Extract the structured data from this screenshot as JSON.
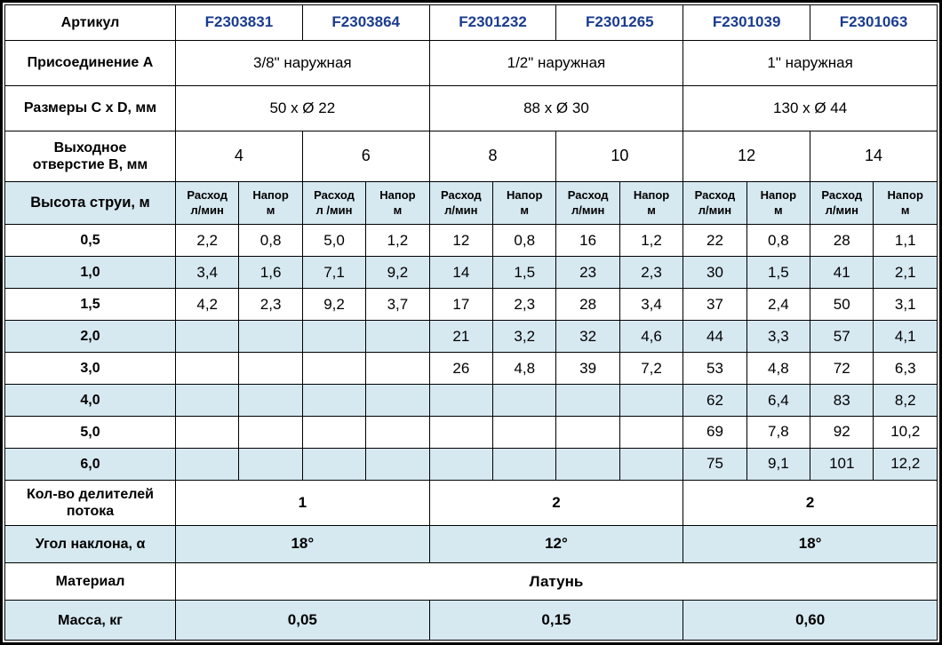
{
  "colors": {
    "alt_row_bg": "#d6e8f0",
    "article_text": "#1b3c8f",
    "border": "#000000",
    "background": "#ffffff",
    "text": "#000000"
  },
  "table": {
    "rows": [
      {
        "type": "article",
        "alt": false,
        "label": "Артикул",
        "cells": [
          {
            "t": "F2303831",
            "span": 2,
            "s": "article"
          },
          {
            "t": "F2303864",
            "span": 2,
            "s": "article"
          },
          {
            "t": "F2301232",
            "span": 2,
            "s": "article"
          },
          {
            "t": "F2301265",
            "span": 2,
            "s": "article"
          },
          {
            "t": "F2301039",
            "span": 2,
            "s": "article"
          },
          {
            "t": "F2301063",
            "span": 2,
            "s": "article"
          }
        ]
      },
      {
        "type": "connection",
        "alt": false,
        "label": "Присоединение A",
        "cells": [
          {
            "t": "3/8\" наружная",
            "span": 4
          },
          {
            "t": "1/2\" наружная",
            "span": 4
          },
          {
            "t": "1\" наружная",
            "span": 4
          }
        ]
      },
      {
        "type": "dimensions",
        "alt": false,
        "label": "Размеры C x D, мм",
        "cells": [
          {
            "t": "50 x Ø 22",
            "span": 4
          },
          {
            "t": "88 x Ø 30",
            "span": 4
          },
          {
            "t": "130 x Ø 44",
            "span": 4
          }
        ]
      },
      {
        "type": "outlet",
        "alt": false,
        "label": "Выходное\nотверстие B, мм",
        "cells": [
          {
            "t": "4",
            "span": 2
          },
          {
            "t": "6",
            "span": 2
          },
          {
            "t": "8",
            "span": 2
          },
          {
            "t": "10",
            "span": 2
          },
          {
            "t": "12",
            "span": 2
          },
          {
            "t": "14",
            "span": 2
          }
        ]
      },
      {
        "type": "subheader",
        "alt": true,
        "label": "Высота струи, м",
        "cells": [
          {
            "t": "Расход\nл/мин",
            "s": "subhead"
          },
          {
            "t": "Напор\nм",
            "s": "subhead"
          },
          {
            "t": "Расход\nл /мин",
            "s": "subhead"
          },
          {
            "t": "Напор\nм",
            "s": "subhead"
          },
          {
            "t": "Расход\nл/мин",
            "s": "subhead"
          },
          {
            "t": "Напор\nм",
            "s": "subhead"
          },
          {
            "t": "Расход\nл/мин",
            "s": "subhead"
          },
          {
            "t": "Напор\nм",
            "s": "subhead"
          },
          {
            "t": "Расход\nл/мин",
            "s": "subhead"
          },
          {
            "t": "Напор\nм",
            "s": "subhead"
          },
          {
            "t": "Расход\nл/мин",
            "s": "subhead"
          },
          {
            "t": "Напор\nм",
            "s": "subhead"
          }
        ]
      },
      {
        "type": "data",
        "alt": false,
        "label": "0,5",
        "cells": [
          "2,2",
          "0,8",
          "5,0",
          "1,2",
          "12",
          "0,8",
          "16",
          "1,2",
          "22",
          "0,8",
          "28",
          "1,1"
        ]
      },
      {
        "type": "data",
        "alt": true,
        "label": "1,0",
        "cells": [
          "3,4",
          "1,6",
          "7,1",
          "9,2",
          "14",
          "1,5",
          "23",
          "2,3",
          "30",
          "1,5",
          "41",
          "2,1"
        ]
      },
      {
        "type": "data",
        "alt": false,
        "label": "1,5",
        "cells": [
          "4,2",
          "2,3",
          "9,2",
          "3,7",
          "17",
          "2,3",
          "28",
          "3,4",
          "37",
          "2,4",
          "50",
          "3,1"
        ]
      },
      {
        "type": "data",
        "alt": true,
        "label": "2,0",
        "cells": [
          "",
          "",
          "",
          "",
          "21",
          "3,2",
          "32",
          "4,6",
          "44",
          "3,3",
          "57",
          "4,1"
        ]
      },
      {
        "type": "data",
        "alt": false,
        "label": "3,0",
        "cells": [
          "",
          "",
          "",
          "",
          "26",
          "4,8",
          "39",
          "7,2",
          "53",
          "4,8",
          "72",
          "6,3"
        ]
      },
      {
        "type": "data",
        "alt": true,
        "label": "4,0",
        "cells": [
          "",
          "",
          "",
          "",
          "",
          "",
          "",
          "",
          "62",
          "6,4",
          "83",
          "8,2"
        ]
      },
      {
        "type": "data",
        "alt": false,
        "label": "5,0",
        "cells": [
          "",
          "",
          "",
          "",
          "",
          "",
          "",
          "",
          "69",
          "7,8",
          "92",
          "10,2"
        ]
      },
      {
        "type": "data",
        "alt": true,
        "label": "6,0",
        "cells": [
          "",
          "",
          "",
          "",
          "",
          "",
          "",
          "",
          "75",
          "9,1",
          "101",
          "12,2"
        ]
      },
      {
        "type": "dividers",
        "alt": false,
        "label": "Кол-во делителей\nпотока",
        "cells": [
          {
            "t": "1",
            "span": 4,
            "s": "bold"
          },
          {
            "t": "2",
            "span": 4,
            "s": "bold"
          },
          {
            "t": "2",
            "span": 4,
            "s": "bold"
          }
        ]
      },
      {
        "type": "angle",
        "alt": true,
        "label": "Угол наклона, α",
        "cells": [
          {
            "t": "18°",
            "span": 4,
            "s": "bold"
          },
          {
            "t": "12°",
            "span": 4,
            "s": "bold"
          },
          {
            "t": "18°",
            "span": 4,
            "s": "bold"
          }
        ]
      },
      {
        "type": "material",
        "alt": false,
        "label": "Материал",
        "cells": [
          {
            "t": "Латунь",
            "span": 12,
            "s": "bold"
          }
        ]
      },
      {
        "type": "mass",
        "alt": true,
        "label": "Масса, кг",
        "cells": [
          {
            "t": "0,05",
            "span": 4,
            "s": "bold"
          },
          {
            "t": "0,15",
            "span": 4,
            "s": "bold"
          },
          {
            "t": "0,60",
            "span": 4,
            "s": "bold"
          }
        ]
      }
    ]
  }
}
